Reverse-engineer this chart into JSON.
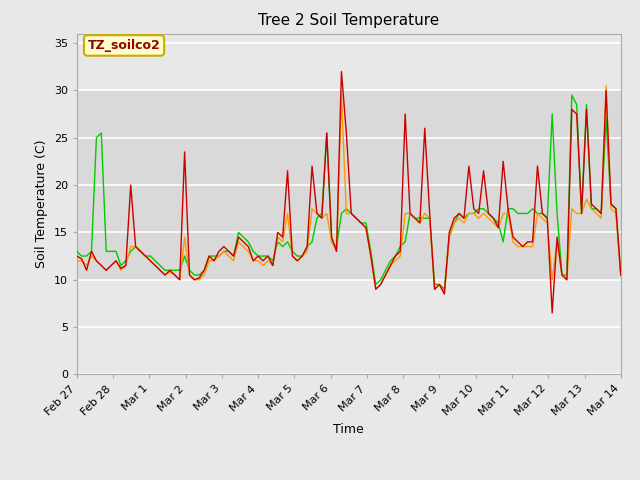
{
  "title": "Tree 2 Soil Temperature",
  "xlabel": "Time",
  "ylabel": "Soil Temperature (C)",
  "annotation_text": "TZ_soilco2",
  "annotation_color": "#990000",
  "annotation_bg": "#ffffcc",
  "annotation_border": "#ccaa00",
  "ylim": [
    0,
    36
  ],
  "yticks": [
    0,
    5,
    10,
    15,
    20,
    25,
    30,
    35
  ],
  "fig_bg": "#e8e8e8",
  "plot_bg": "#e8e8e8",
  "band_color": "#c8c8c8",
  "line_colors": {
    "2cm": "#cc0000",
    "4cm": "#ff9900",
    "8cm": "#00cc00"
  },
  "xtick_labels": [
    "Feb 27",
    "Feb 28",
    "Mar 1",
    "Mar 2",
    "Mar 3",
    "Mar 4",
    "Mar 5",
    "Mar 6",
    "Mar 7",
    "Mar 8",
    "Mar 9",
    "Mar 10",
    "Mar 11",
    "Mar 12",
    "Mar 13",
    "Mar 14"
  ],
  "x_positions": [
    0,
    1,
    2,
    3,
    4,
    5,
    6,
    7,
    8,
    9,
    10,
    11,
    12,
    13,
    14,
    15
  ],
  "tree2_2cm": [
    12.5,
    12.2,
    11.0,
    13.0,
    12.0,
    11.5,
    11.0,
    11.5,
    12.0,
    11.2,
    11.5,
    20.0,
    13.5,
    13.0,
    12.5,
    12.0,
    11.5,
    11.0,
    10.5,
    11.0,
    10.5,
    10.0,
    23.5,
    10.5,
    10.0,
    10.2,
    11.0,
    12.5,
    12.0,
    13.0,
    13.5,
    13.0,
    12.5,
    14.5,
    14.0,
    13.5,
    12.0,
    12.5,
    12.0,
    12.5,
    11.5,
    15.0,
    14.5,
    21.5,
    12.5,
    12.0,
    12.5,
    13.5,
    22.0,
    17.0,
    16.5,
    25.5,
    14.5,
    13.0,
    32.0,
    25.5,
    17.0,
    16.5,
    16.0,
    15.5,
    12.5,
    9.0,
    9.5,
    10.5,
    11.5,
    12.5,
    13.0,
    27.5,
    17.0,
    16.5,
    16.0,
    26.0,
    17.0,
    9.0,
    9.5,
    8.5,
    15.0,
    16.5,
    17.0,
    16.5,
    22.0,
    17.5,
    17.0,
    21.5,
    17.0,
    16.5,
    15.5,
    22.5,
    17.5,
    14.5,
    14.0,
    13.5,
    14.0,
    14.0,
    22.0,
    17.0,
    16.5,
    6.5,
    14.5,
    10.5,
    10.0,
    28.0,
    27.5,
    17.0,
    28.0,
    18.0,
    17.5,
    17.0,
    30.0,
    18.0,
    17.5,
    10.5
  ],
  "tree2_4cm": [
    12.0,
    12.0,
    11.5,
    12.5,
    12.0,
    11.5,
    11.0,
    11.5,
    12.0,
    11.0,
    11.5,
    13.5,
    13.5,
    13.0,
    12.5,
    12.0,
    11.5,
    11.0,
    10.5,
    10.8,
    10.5,
    10.0,
    14.5,
    10.5,
    10.0,
    10.0,
    10.5,
    12.0,
    12.0,
    12.5,
    13.0,
    12.5,
    12.0,
    14.0,
    13.5,
    13.0,
    12.0,
    12.0,
    11.5,
    12.0,
    11.5,
    14.5,
    14.0,
    17.0,
    12.5,
    12.0,
    12.5,
    13.0,
    17.5,
    17.0,
    16.5,
    17.0,
    14.0,
    13.0,
    29.5,
    17.0,
    17.0,
    16.5,
    16.0,
    15.5,
    12.5,
    9.0,
    9.5,
    10.5,
    11.5,
    12.0,
    12.5,
    17.0,
    17.0,
    16.5,
    16.0,
    17.0,
    16.5,
    9.0,
    9.5,
    8.5,
    14.5,
    16.0,
    16.5,
    16.0,
    17.0,
    17.0,
    16.5,
    17.0,
    16.5,
    16.0,
    15.5,
    17.0,
    17.0,
    14.0,
    13.5,
    13.5,
    13.5,
    13.5,
    17.0,
    16.5,
    16.0,
    10.0,
    14.0,
    10.5,
    10.0,
    17.5,
    17.0,
    17.0,
    18.5,
    17.5,
    17.0,
    16.5,
    30.5,
    17.5,
    17.0,
    10.5
  ],
  "tree2_8cm": [
    13.0,
    12.5,
    12.5,
    13.0,
    25.0,
    25.5,
    13.0,
    13.0,
    13.0,
    11.5,
    12.0,
    13.0,
    13.5,
    13.0,
    12.5,
    12.5,
    12.0,
    11.5,
    11.0,
    11.0,
    11.0,
    11.0,
    12.5,
    11.0,
    10.5,
    10.5,
    11.0,
    12.5,
    12.5,
    12.5,
    13.0,
    13.0,
    12.5,
    15.0,
    14.5,
    14.0,
    13.0,
    12.5,
    12.5,
    12.5,
    12.0,
    14.0,
    13.5,
    14.0,
    13.0,
    12.5,
    12.5,
    13.5,
    14.0,
    16.5,
    17.0,
    25.5,
    14.0,
    13.5,
    17.0,
    17.5,
    17.0,
    16.5,
    16.0,
    16.0,
    13.0,
    9.5,
    10.0,
    11.0,
    12.0,
    12.5,
    13.5,
    14.0,
    17.0,
    16.5,
    16.5,
    16.5,
    16.5,
    9.5,
    9.5,
    9.0,
    14.5,
    16.0,
    17.0,
    16.5,
    17.0,
    17.0,
    17.5,
    17.5,
    17.0,
    16.5,
    16.0,
    14.0,
    17.5,
    17.5,
    17.0,
    17.0,
    17.0,
    17.5,
    17.0,
    17.0,
    16.5,
    27.5,
    17.0,
    10.5,
    10.5,
    29.5,
    28.5,
    17.0,
    28.5,
    17.5,
    17.5,
    17.0,
    27.0,
    18.0,
    17.5,
    10.5
  ]
}
